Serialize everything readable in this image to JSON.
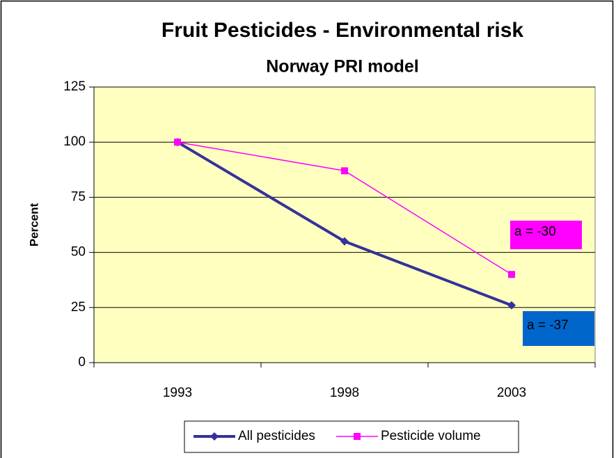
{
  "chart_data": {
    "type": "line",
    "title": "Fruit Pesticides - Environmental risk",
    "subtitle": "Norway PRI model",
    "y_label": "Percent",
    "categories": [
      "1993",
      "1998",
      "2003"
    ],
    "series": [
      {
        "name": "All pesticides",
        "color": "#333399",
        "marker": "diamond",
        "values": [
          100,
          55,
          26
        ]
      },
      {
        "name": "Pesticide volume",
        "color": "#ff00ff",
        "marker": "square",
        "values": [
          100,
          87,
          40
        ]
      }
    ],
    "ylim": [
      0,
      125
    ],
    "yticks": [
      0,
      25,
      50,
      75,
      100,
      125
    ],
    "grid": true,
    "legend": "bottom",
    "annotations": [
      {
        "text": "a = -30",
        "color": "#ff00ff"
      },
      {
        "text": "a = -37",
        "color": "#0066cc"
      }
    ]
  }
}
